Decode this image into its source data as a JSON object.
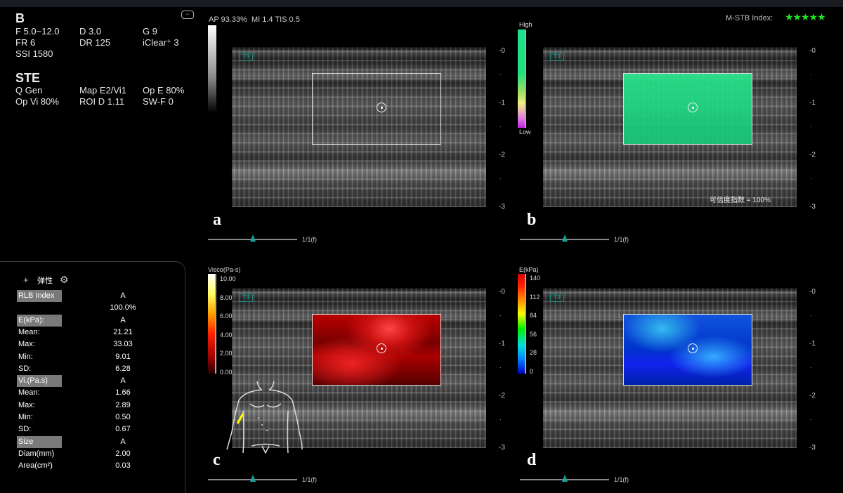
{
  "params": {
    "b_title": "B",
    "b_rows": [
      [
        "F 5.0~12.0",
        "D 3.0",
        "G 9"
      ],
      [
        "FR 6",
        "DR 125",
        "iClear⁺ 3"
      ],
      [
        "SSI 1580",
        "",
        ""
      ]
    ],
    "ste_title": "STE",
    "ste_rows": [
      [
        "Q Gen",
        "Map E2/Vi1",
        "Op E 80%"
      ],
      [
        "Op Vi 80%",
        "ROI D 1.11",
        "SW-F 0"
      ]
    ]
  },
  "status": {
    "acoustic": "AP 93.33%  MI 1.4 TIS 0.5",
    "mstb_label": "M-STB Index:",
    "mstb_stars": 5,
    "star_color": "#22e022"
  },
  "panels": [
    {
      "letter": "a",
      "frame": "1/1(f)",
      "depth": [
        "-0",
        "-1",
        "-2",
        "-3"
      ]
    },
    {
      "letter": "b",
      "frame": "1/1(f)",
      "depth": [
        "-0",
        "-1",
        "-2",
        "-3"
      ],
      "confidence": "可信度指数 = 100%"
    },
    {
      "letter": "c",
      "frame": "1/1(f)",
      "depth": [
        "-0",
        "-1",
        "-2",
        "-3"
      ]
    },
    {
      "letter": "d",
      "frame": "1/1(f)",
      "depth": [
        "-0",
        "-1",
        "-2",
        "-3"
      ]
    }
  ],
  "tag": "T3",
  "quality_bar": {
    "high": "High",
    "low": "Low"
  },
  "visco_bar": {
    "title": "Visco(Pa-s)",
    "ticks": [
      "10.00",
      "8.00",
      "6.00",
      "4.00",
      "2.00",
      "0.00"
    ]
  },
  "e_bar": {
    "title": "E(kPa)",
    "ticks": [
      "140",
      "112",
      "84",
      "56",
      "28",
      "0"
    ]
  },
  "measure": {
    "title": "弹性",
    "rows": [
      {
        "label": "RLB Index",
        "value": "A",
        "hl": true
      },
      {
        "label": "",
        "value": "100.0%"
      },
      {
        "label": "E(kPa):",
        "value": "A",
        "hl": true
      },
      {
        "label": "Mean:",
        "value": "21.21"
      },
      {
        "label": "Max:",
        "value": "33.03"
      },
      {
        "label": "Min:",
        "value": "9.01"
      },
      {
        "label": "SD:",
        "value": "6.28"
      },
      {
        "label": "Vi.(Pa.s)",
        "value": "A",
        "hl": true
      },
      {
        "label": "Mean:",
        "value": "1.66"
      },
      {
        "label": "Max:",
        "value": "2.89"
      },
      {
        "label": "Min:",
        "value": "0.50"
      },
      {
        "label": "SD:",
        "value": "0.67"
      },
      {
        "label": "Size",
        "value": "A",
        "hl": true
      },
      {
        "label": "Diam(mm)",
        "value": "2.00"
      },
      {
        "label": "Area(cm²)",
        "value": "0.03"
      }
    ]
  }
}
